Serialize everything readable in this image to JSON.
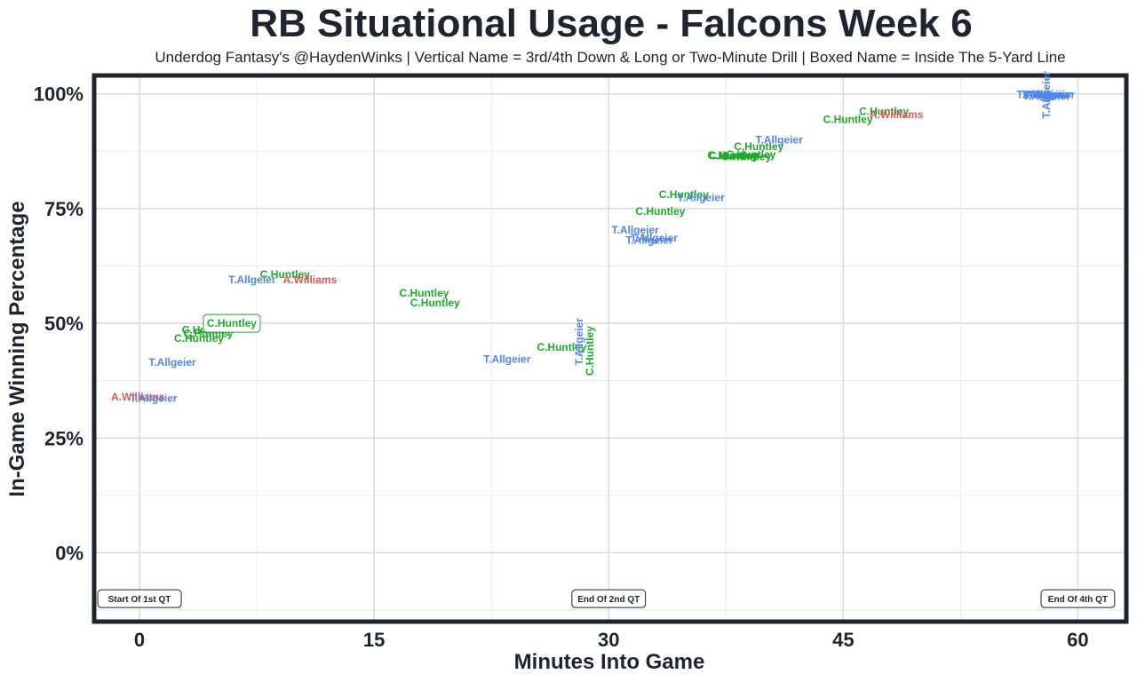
{
  "chart_data": {
    "type": "scatter",
    "title": "RB Situational Usage - Falcons Week 6",
    "subtitle": "Underdog Fantasy's @HaydenWinks | Vertical Name = 3rd/4th Down & Long or Two-Minute Drill | Boxed Name = Inside The 5-Yard Line",
    "xlabel": "Minutes Into Game",
    "ylabel": "In-Game Winning Percentage",
    "xlim": [
      -2.9,
      63.1
    ],
    "ylim": [
      -0.15,
      1.04
    ],
    "x_ticks": [
      0,
      15,
      30,
      45,
      60
    ],
    "x_tick_labels": [
      "0",
      "15",
      "30",
      "45",
      "60"
    ],
    "y_ticks": [
      0,
      0.25,
      0.5,
      0.75,
      1.0
    ],
    "y_tick_labels": [
      "0%",
      "25%",
      "50%",
      "75%",
      "100%"
    ],
    "grid": true,
    "colors": {
      "C.Huntley": "#1fa82c",
      "T.Allgeier": "#4f86e6",
      "A.Williams": "#e15759",
      "frame": "#1f2430"
    },
    "quarter_markers": [
      {
        "label": "Start Of 1st QT",
        "x": 0
      },
      {
        "label": "End Of 2nd QT",
        "x": 30
      },
      {
        "label": "End Of 4th QT",
        "x": 60
      }
    ],
    "points": [
      {
        "name": "A.Williams",
        "x": -0.1,
        "y": 0.34
      },
      {
        "name": "T.Allgeier",
        "x": 0.9,
        "y": 0.337
      },
      {
        "name": "T.Allgeier",
        "x": 2.1,
        "y": 0.415
      },
      {
        "name": "C.Huntley",
        "x": 3.8,
        "y": 0.467
      },
      {
        "name": "C.Huntley",
        "x": 4.4,
        "y": 0.478
      },
      {
        "name": "C.Huntley",
        "x": 4.3,
        "y": 0.486
      },
      {
        "name": "C.Huntley",
        "x": 5.9,
        "y": 0.5,
        "boxed": true
      },
      {
        "name": "T.Allgeier",
        "x": 7.2,
        "y": 0.595
      },
      {
        "name": "C.Huntley",
        "x": 9.3,
        "y": 0.607
      },
      {
        "name": "A.Williams",
        "x": 10.9,
        "y": 0.595
      },
      {
        "name": "C.Huntley",
        "x": 18.2,
        "y": 0.566
      },
      {
        "name": "C.Huntley",
        "x": 18.9,
        "y": 0.545
      },
      {
        "name": "T.Allgeier",
        "x": 23.5,
        "y": 0.422
      },
      {
        "name": "C.Huntley",
        "x": 27.0,
        "y": 0.448
      },
      {
        "name": "T.Allgeier",
        "x": 28.1,
        "y": 0.46,
        "vertical": true
      },
      {
        "name": "C.Huntley",
        "x": 28.8,
        "y": 0.44,
        "vertical": true
      },
      {
        "name": "T.Allgeier",
        "x": 31.7,
        "y": 0.703
      },
      {
        "name": "T.Allgeier",
        "x": 32.9,
        "y": 0.686
      },
      {
        "name": "T.Allgeier",
        "x": 32.6,
        "y": 0.681
      },
      {
        "name": "C.Huntley",
        "x": 33.3,
        "y": 0.744
      },
      {
        "name": "C.Huntley",
        "x": 34.8,
        "y": 0.781
      },
      {
        "name": "T.Allgeier",
        "x": 35.9,
        "y": 0.774
      },
      {
        "name": "C.Huntley",
        "x": 38.0,
        "y": 0.865
      },
      {
        "name": "C.Huntley",
        "x": 39.1,
        "y": 0.868
      },
      {
        "name": "C.Huntley",
        "x": 38.8,
        "y": 0.863
      },
      {
        "name": "C.Huntley",
        "x": 37.9,
        "y": 0.866
      },
      {
        "name": "C.Huntley",
        "x": 39.6,
        "y": 0.885
      },
      {
        "name": "T.Allgeier",
        "x": 40.9,
        "y": 0.9
      },
      {
        "name": "C.Huntley",
        "x": 45.3,
        "y": 0.944
      },
      {
        "name": "C.Huntley",
        "x": 47.6,
        "y": 0.962
      },
      {
        "name": "A.Williams",
        "x": 48.4,
        "y": 0.955
      },
      {
        "name": "T.Allgeier",
        "x": 57.6,
        "y": 0.998
      },
      {
        "name": "T.Allgeier",
        "x": 57.9,
        "y": 0.998
      },
      {
        "name": "T.Allgeier",
        "x": 58.1,
        "y": 0.998
      },
      {
        "name": "T.Allgeier",
        "x": 58.3,
        "y": 0.998
      },
      {
        "name": "T.Allgeier",
        "x": 58.0,
        "y": 0.995
      },
      {
        "name": "T.Allgeier",
        "x": 58.0,
        "y": 0.998,
        "vertical": true
      }
    ]
  }
}
